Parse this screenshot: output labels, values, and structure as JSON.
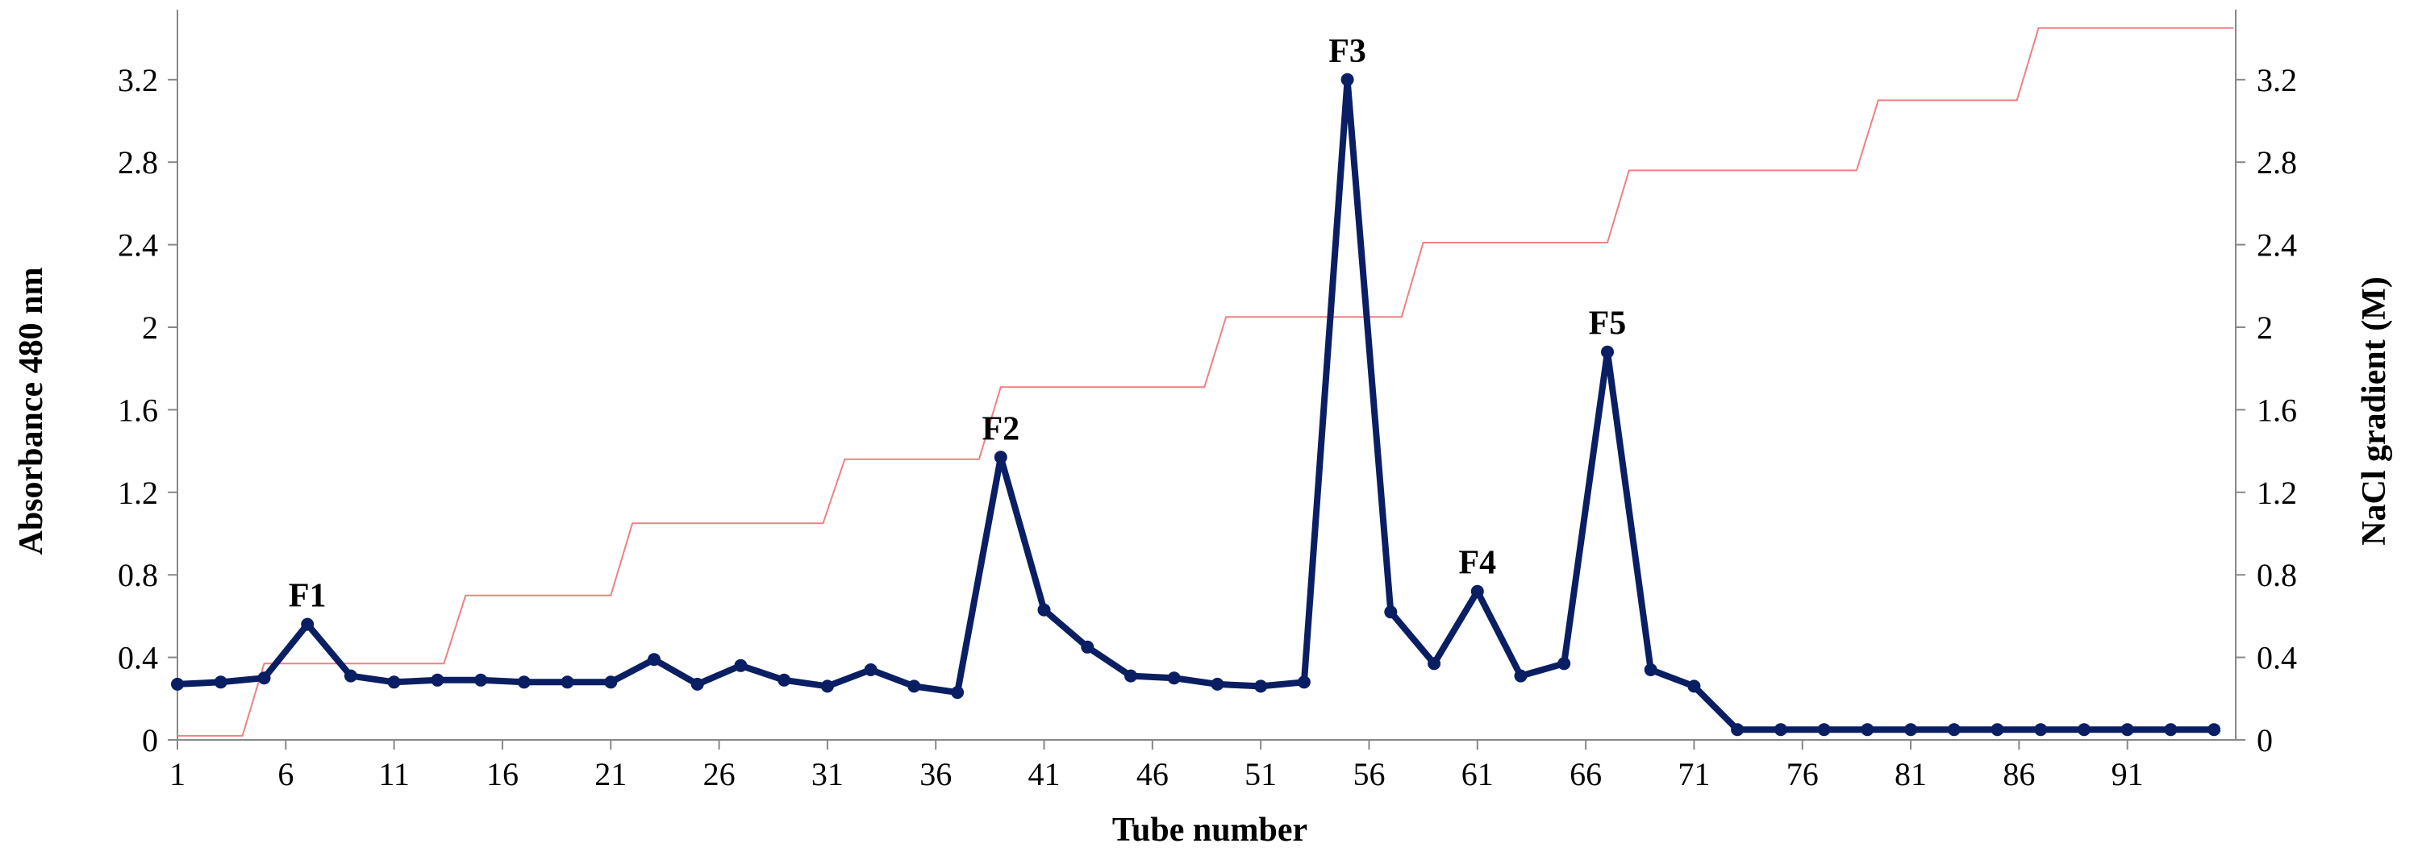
{
  "chart_data": {
    "type": "line",
    "xlabel": "Tube number",
    "ylabel": "Absorbance 480 nm",
    "y2label": "NaCl gradient (M)",
    "x_tick_labels": [
      "1",
      "6",
      "11",
      "16",
      "21",
      "26",
      "31",
      "36",
      "41",
      "46",
      "51",
      "56",
      "61",
      "66",
      "71",
      "76",
      "81",
      "86",
      "91"
    ],
    "xlim": [
      1,
      96
    ],
    "ylim": [
      0,
      3.5
    ],
    "y_ticks": [
      "0",
      "0.4",
      "0.8",
      "1.2",
      "1.6",
      "2",
      "2.4",
      "2.8",
      "3.2"
    ],
    "y2lim": [
      0,
      3.5
    ],
    "y2_ticks": [
      "0",
      "0.4",
      "0.8",
      "1.2",
      "1.6",
      "2",
      "2.4",
      "2.8",
      "3.2"
    ],
    "grid": false,
    "legend": "none",
    "colors": {
      "absorbance": "#0a1f63",
      "gradient": "#f08080",
      "axis": "#888888"
    },
    "series": [
      {
        "x": [
          1,
          3,
          5,
          7,
          9,
          11,
          13,
          15,
          17,
          19,
          21,
          23,
          25,
          27,
          29,
          31,
          33,
          35,
          37,
          39,
          41,
          43,
          45,
          47,
          49,
          51,
          53,
          55,
          57,
          59,
          61,
          63,
          65,
          67,
          69,
          71,
          73,
          75,
          77,
          79,
          81,
          83,
          85,
          87,
          89,
          91,
          93,
          95
        ],
        "values": [
          0.27,
          0.28,
          0.3,
          0.56,
          0.31,
          0.28,
          0.29,
          0.29,
          0.28,
          0.28,
          0.28,
          0.39,
          0.27,
          0.36,
          0.29,
          0.26,
          0.34,
          0.26,
          0.23,
          1.37,
          0.63,
          0.45,
          0.31,
          0.3,
          0.27,
          0.26,
          0.28,
          3.2,
          0.62,
          0.37,
          0.72,
          0.31,
          0.37,
          1.88,
          0.34,
          0.26,
          0.05,
          0.05,
          0.05,
          0.05,
          0.05,
          0.05,
          0.05,
          0.05,
          0.05,
          0.05,
          0.05,
          0.05
        ]
      },
      {
        "steps": [
          {
            "x0": 1,
            "x1": 4,
            "y": 0.02
          },
          {
            "x0": 5,
            "x1": 13.3,
            "y": 0.37
          },
          {
            "x0": 14.3,
            "x1": 21,
            "y": 0.7
          },
          {
            "x0": 22,
            "x1": 30.8,
            "y": 1.05
          },
          {
            "x0": 31.8,
            "x1": 38,
            "y": 1.36
          },
          {
            "x0": 39,
            "x1": 48.4,
            "y": 1.71
          },
          {
            "x0": 49.4,
            "x1": 57.5,
            "y": 2.05
          },
          {
            "x0": 58.5,
            "x1": 67,
            "y": 2.41
          },
          {
            "x0": 68,
            "x1": 78.5,
            "y": 2.76
          },
          {
            "x0": 79.5,
            "x1": 85.9,
            "y": 3.1
          },
          {
            "x0": 86.9,
            "x1": 95.9,
            "y": 3.45
          }
        ]
      }
    ],
    "annotations": [
      {
        "text": "F1",
        "x": 7,
        "y": 0.56
      },
      {
        "text": "F2",
        "x": 39,
        "y": 1.37
      },
      {
        "text": "F3",
        "x": 55,
        "y": 3.2
      },
      {
        "text": "F4",
        "x": 61,
        "y": 0.72
      },
      {
        "text": "F5",
        "x": 67,
        "y": 1.88
      }
    ]
  }
}
